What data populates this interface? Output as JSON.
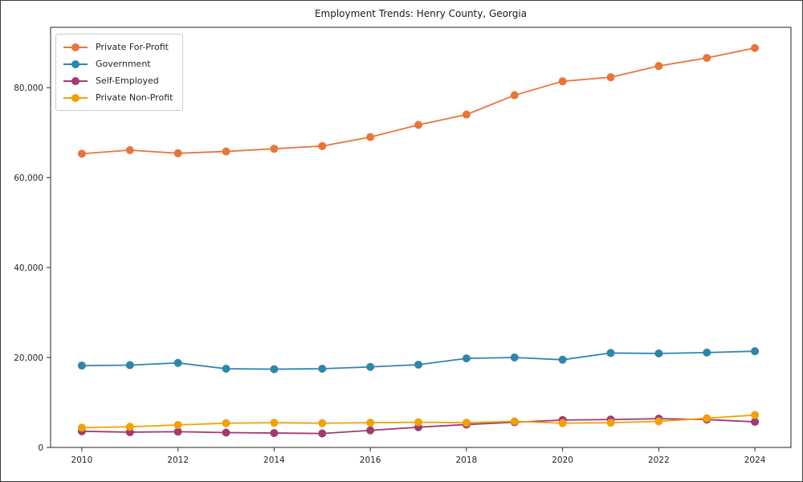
{
  "chart_data": {
    "type": "line",
    "title": "Employment Trends: Henry County, Georgia",
    "xlabel": "",
    "ylabel": "",
    "grid": false,
    "legend_position": "upper left",
    "marker": "circle",
    "x": [
      2010,
      2011,
      2012,
      2013,
      2014,
      2015,
      2016,
      2017,
      2018,
      2019,
      2020,
      2021,
      2022,
      2023,
      2024
    ],
    "series": [
      {
        "name": "Private For-Profit",
        "color": "#e8763a",
        "values": [
          65300,
          66100,
          65400,
          65800,
          66400,
          67000,
          69000,
          71700,
          74000,
          78300,
          81400,
          82300,
          84800,
          86600,
          88800
        ]
      },
      {
        "name": "Government",
        "color": "#2e86ab",
        "values": [
          18200,
          18300,
          18800,
          17500,
          17400,
          17500,
          17900,
          18400,
          19800,
          20000,
          19500,
          21000,
          20900,
          21100,
          21400
        ]
      },
      {
        "name": "Self-Employed",
        "color": "#a23b72",
        "values": [
          3600,
          3400,
          3500,
          3300,
          3200,
          3100,
          3800,
          4500,
          5100,
          5600,
          6100,
          6200,
          6400,
          6200,
          5700
        ]
      },
      {
        "name": "Private Non-Profit",
        "color": "#f2a104",
        "values": [
          4400,
          4600,
          5000,
          5400,
          5500,
          5400,
          5500,
          5600,
          5500,
          5800,
          5400,
          5500,
          5800,
          6500,
          7200
        ]
      }
    ],
    "x_ticks": [
      2010,
      2012,
      2014,
      2016,
      2018,
      2020,
      2022,
      2024
    ],
    "x_tick_labels": [
      "2010",
      "2012",
      "2014",
      "2016",
      "2018",
      "2020",
      "2022",
      "2024"
    ],
    "y_ticks": [
      0,
      20000,
      40000,
      60000,
      80000
    ],
    "y_tick_labels": [
      "0",
      "20,000",
      "40,000",
      "60,000",
      "80,000"
    ],
    "xlim": [
      2009.35,
      2024.75
    ],
    "ylim": [
      0,
      93400
    ]
  }
}
